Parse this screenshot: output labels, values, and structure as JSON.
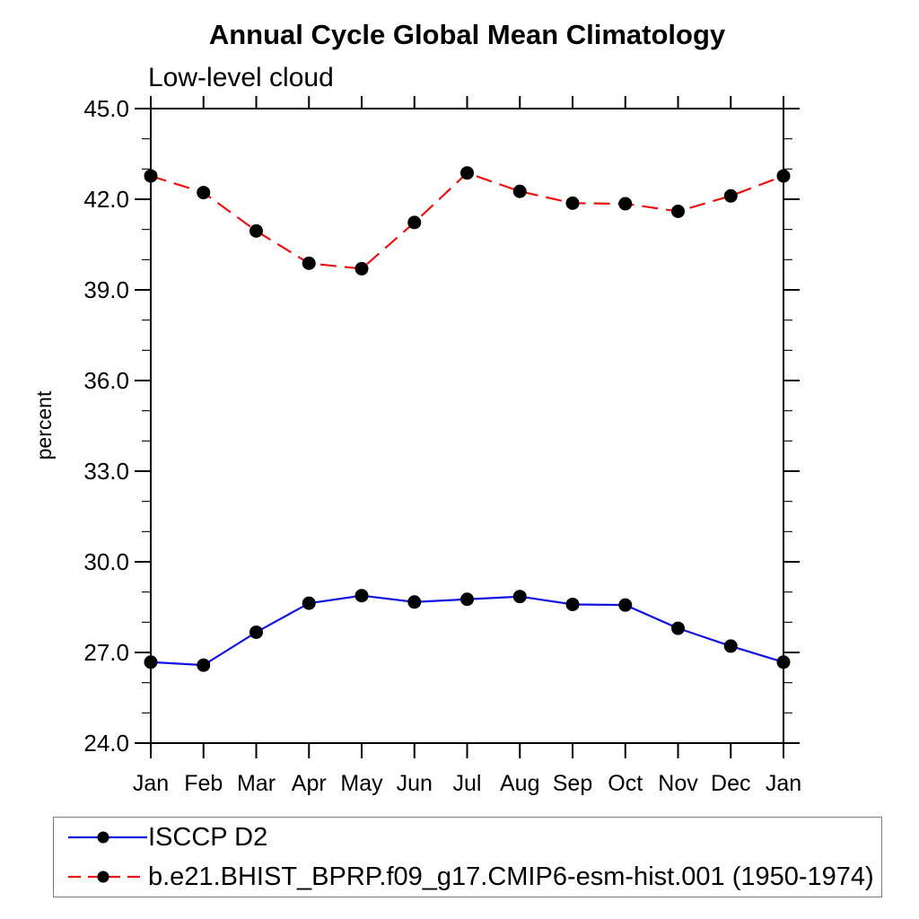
{
  "chart_data": {
    "type": "line",
    "title": "Annual Cycle Global Mean Climatology",
    "subtitle": "Low-level cloud",
    "ylabel": "percent",
    "xlabel": "",
    "ylim": [
      24.0,
      45.0
    ],
    "ytick_major": [
      24,
      27,
      30,
      33,
      36,
      39,
      42,
      45
    ],
    "ytick_labels": [
      "24.0",
      "27.0",
      "30.0",
      "33.0",
      "36.0",
      "39.0",
      "42.0",
      "45.0"
    ],
    "ytick_minor_step": 1,
    "categories": [
      "Jan",
      "Feb",
      "Mar",
      "Apr",
      "May",
      "Jun",
      "Jul",
      "Aug",
      "Sep",
      "Oct",
      "Nov",
      "Dec",
      "Jan"
    ],
    "grid": false,
    "legend_position": "bottom-left-box",
    "marker_color": "#000000",
    "axis_color": "#000000",
    "series": [
      {
        "name": "ISCCP D2",
        "color": "#1212e0",
        "style": "solid",
        "dasharray": "",
        "legend_dasharray": "",
        "values": [
          26.68,
          26.58,
          27.67,
          28.63,
          28.88,
          28.67,
          28.76,
          28.85,
          28.59,
          28.57,
          27.8,
          27.21,
          26.68
        ]
      },
      {
        "name": "b.e21.BHIST_BPRP.f09_g17.CMIP6-esm-hist.001 (1950-1974)",
        "color": "#ee1111",
        "style": "dashed",
        "dasharray": "18,9",
        "legend_dasharray": "14,8",
        "values": [
          42.77,
          42.22,
          40.95,
          39.88,
          39.7,
          41.23,
          42.87,
          42.26,
          41.87,
          41.85,
          41.6,
          42.11,
          42.77
        ]
      }
    ]
  }
}
